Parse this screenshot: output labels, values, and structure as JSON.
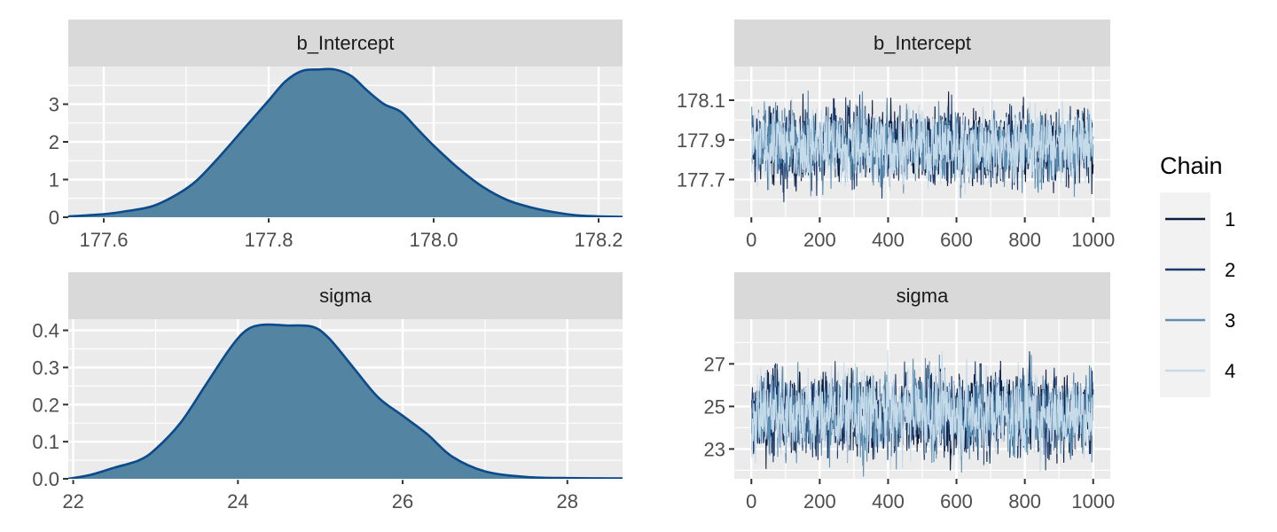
{
  "chart_data": [
    {
      "type": "area",
      "panel": "density",
      "title": "b_Intercept",
      "xlim": [
        177.557,
        178.229
      ],
      "ylim": [
        0,
        4.0
      ],
      "xticks": [
        177.6,
        177.8,
        178.0,
        178.2
      ],
      "xtick_labels": [
        "177.6",
        "177.8",
        "178.0",
        "178.2"
      ],
      "yticks": [
        0,
        1,
        2,
        3
      ],
      "ytick_labels": [
        "0",
        "1",
        "2",
        "3"
      ],
      "x": [
        177.557,
        177.6,
        177.63,
        177.66,
        177.69,
        177.713,
        177.74,
        177.77,
        177.8,
        177.82,
        177.84,
        177.86,
        177.88,
        177.9,
        177.92,
        177.94,
        177.96,
        177.98,
        178.0,
        178.03,
        178.06,
        178.09,
        178.12,
        178.15,
        178.18,
        178.229
      ],
      "y": [
        0.02,
        0.08,
        0.17,
        0.3,
        0.62,
        0.98,
        1.6,
        2.35,
        3.1,
        3.6,
        3.88,
        3.92,
        3.92,
        3.75,
        3.35,
        3.0,
        2.8,
        2.35,
        1.9,
        1.3,
        0.8,
        0.45,
        0.25,
        0.12,
        0.04,
        0.01
      ],
      "grid": true
    },
    {
      "type": "area",
      "panel": "density",
      "title": "sigma",
      "xlim": [
        21.94,
        28.67
      ],
      "ylim": [
        0,
        0.43
      ],
      "xticks": [
        22,
        24,
        26,
        28
      ],
      "xtick_labels": [
        "22",
        "24",
        "26",
        "28"
      ],
      "yticks": [
        0,
        0.1,
        0.2,
        0.3,
        0.4
      ],
      "ytick_labels": [
        "0.0",
        "0.1",
        "0.2",
        "0.3",
        "0.4"
      ],
      "x": [
        21.94,
        22.2,
        22.5,
        22.8,
        23.0,
        23.3,
        23.6,
        23.9,
        24.1,
        24.3,
        24.6,
        24.9,
        25.1,
        25.4,
        25.7,
        26.0,
        26.3,
        26.6,
        27.0,
        27.5,
        28.0,
        28.67
      ],
      "y": [
        0.0,
        0.01,
        0.03,
        0.05,
        0.08,
        0.15,
        0.25,
        0.35,
        0.4,
        0.415,
        0.413,
        0.41,
        0.38,
        0.3,
        0.22,
        0.17,
        0.12,
        0.06,
        0.02,
        0.005,
        0.002,
        0.001
      ],
      "grid": true
    },
    {
      "type": "line",
      "panel": "trace",
      "title": "b_Intercept",
      "xlim": [
        -50,
        1050
      ],
      "ylim": [
        177.51,
        178.27
      ],
      "xticks": [
        0,
        200,
        400,
        600,
        800,
        1000
      ],
      "xtick_labels": [
        "0",
        "200",
        "400",
        "600",
        "800",
        "1000"
      ],
      "yticks": [
        177.7,
        177.9,
        178.1
      ],
      "ytick_labels": [
        "177.7",
        "177.9",
        "178.1"
      ],
      "iterations": 1000,
      "mean": 177.87,
      "sd": 0.09,
      "grid": true
    },
    {
      "type": "line",
      "panel": "trace",
      "title": "sigma",
      "xlim": [
        -50,
        1050
      ],
      "ylim": [
        21.6,
        29.1
      ],
      "xticks": [
        0,
        200,
        400,
        600,
        800,
        1000
      ],
      "xtick_labels": [
        "0",
        "200",
        "400",
        "600",
        "800",
        "1000"
      ],
      "yticks": [
        23,
        25,
        27
      ],
      "ytick_labels": [
        "23",
        "25",
        "27"
      ],
      "iterations": 1000,
      "mean": 24.7,
      "sd": 0.95,
      "grid": true
    }
  ],
  "legend": {
    "title": "Chain",
    "position": "right",
    "items": [
      {
        "label": "1",
        "color": "#0d1b3e"
      },
      {
        "label": "2",
        "color": "#1d3c6e"
      },
      {
        "label": "3",
        "color": "#5d8fb3"
      },
      {
        "label": "4",
        "color": "#c6dbea"
      }
    ]
  },
  "colors": {
    "density_fill": "#5384a1",
    "density_line": "#0b4a8b",
    "panel_bg": "#ebebeb",
    "strip_bg": "#d9d9d9",
    "legend_key_bg": "#f2f2f2"
  }
}
